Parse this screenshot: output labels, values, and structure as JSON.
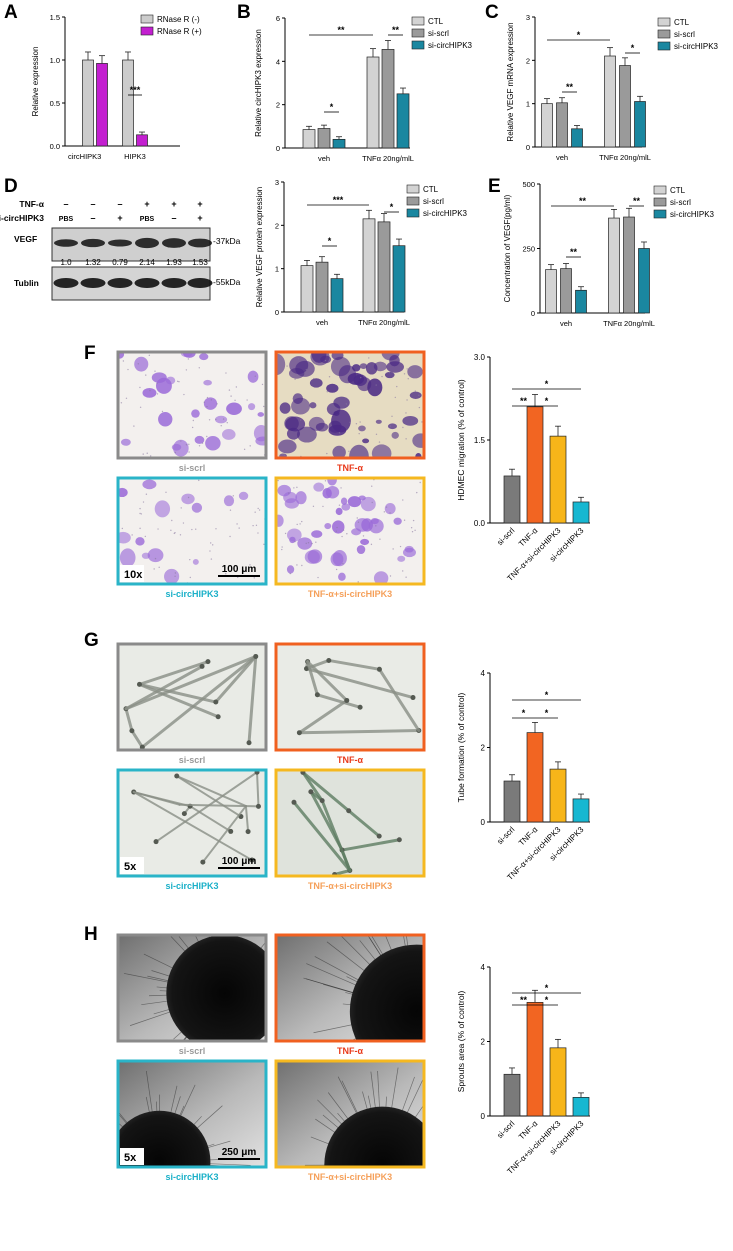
{
  "panel_labels": {
    "A": "A",
    "B": "B",
    "C": "C",
    "D": "D",
    "E": "E",
    "F": "F",
    "G": "G",
    "H": "H"
  },
  "panelA": {
    "ylabel": "Relative expression",
    "legend": [
      "RNase R (-)",
      "RNase R (+)"
    ],
    "colors": [
      "#cccccc",
      "#c31fd0"
    ],
    "sig": [
      "***"
    ],
    "chart_data": {
      "type": "bar",
      "categories": [
        "circHIPK3",
        "HIPK3"
      ],
      "series": [
        {
          "name": "RNase R (-)",
          "values": [
            1.0,
            1.0
          ]
        },
        {
          "name": "RNase R (+)",
          "values": [
            0.96,
            0.13
          ]
        }
      ],
      "ylim": [
        0,
        1.5
      ],
      "yticks": [
        "0.0",
        "0.5",
        "1.0",
        "1.5"
      ]
    }
  },
  "panelB": {
    "ylabel": "Relative circHIPK3 expression",
    "legend": [
      "CTL",
      "si-scrl",
      "si-circHIPK3"
    ],
    "sig": [
      "**",
      "*",
      "**"
    ],
    "chart_data": {
      "type": "bar",
      "categories": [
        "veh",
        "TNFα 20ng/mlL"
      ],
      "series": [
        {
          "name": "CTL",
          "values": [
            0.85,
            4.2
          ]
        },
        {
          "name": "si-scrl",
          "values": [
            0.9,
            4.55
          ]
        },
        {
          "name": "si-circHIPK3",
          "values": [
            0.4,
            2.5
          ]
        }
      ],
      "ylim": [
        0,
        6
      ],
      "yticks": [
        "0",
        "2",
        "4",
        "6"
      ]
    }
  },
  "panelC": {
    "ylabel": "Relative VEGF mRNA expression",
    "legend": [
      "CTL",
      "si-scrl",
      "si-circHIPK3"
    ],
    "sig": [
      "*",
      "**",
      "*"
    ],
    "chart_data": {
      "type": "bar",
      "categories": [
        "veh",
        "TNFα 20ng/mlL"
      ],
      "series": [
        {
          "name": "CTL",
          "values": [
            1.0,
            2.1
          ]
        },
        {
          "name": "si-scrl",
          "values": [
            1.02,
            1.88
          ]
        },
        {
          "name": "si-circHIPK3",
          "values": [
            0.42,
            1.05
          ]
        }
      ],
      "ylim": [
        0,
        3
      ],
      "yticks": [
        "0",
        "1",
        "2",
        "3"
      ]
    }
  },
  "panelD_blot": {
    "row_labels": [
      "TNF-α",
      "si-circHIPK3"
    ],
    "tnf_signs": [
      "–",
      "–",
      "–",
      "+",
      "+",
      "+"
    ],
    "si_signs": [
      "PBS",
      "–",
      "+",
      "PBS",
      "–",
      "+"
    ],
    "band_labels": [
      "VEGF",
      "Tublin"
    ],
    "kda": [
      "-37kDa",
      "-55kDa"
    ],
    "quant": [
      "1.0",
      "1.32",
      "0.79",
      "2.14",
      "1.93",
      "1.53"
    ]
  },
  "panelD_chart": {
    "ylabel": "Relative VEGF protein expression",
    "legend": [
      "CTL",
      "si-scrl",
      "si-circHIPK3"
    ],
    "sig": [
      "***",
      "*",
      "*"
    ],
    "chart_data": {
      "type": "bar",
      "categories": [
        "veh",
        "TNFα 20ng/mlL"
      ],
      "series": [
        {
          "name": "CTL",
          "values": [
            1.07,
            2.15
          ]
        },
        {
          "name": "si-scrl",
          "values": [
            1.15,
            2.08
          ]
        },
        {
          "name": "si-circHIPK3",
          "values": [
            0.77,
            1.53
          ]
        }
      ],
      "ylim": [
        0,
        3
      ],
      "yticks": [
        "0",
        "1",
        "2",
        "3"
      ]
    }
  },
  "panelE": {
    "ylabel": "Concentration of VEGF(pg/ml)",
    "legend": [
      "CTL",
      "si-scrl",
      "si-circHIPK3"
    ],
    "sig": [
      "**",
      "**",
      "**"
    ],
    "chart_data": {
      "type": "bar",
      "categories": [
        "veh",
        "TNFα 20ng/mlL"
      ],
      "series": [
        {
          "name": "CTL",
          "values": [
            168,
            368
          ]
        },
        {
          "name": "si-scrl",
          "values": [
            172,
            372
          ]
        },
        {
          "name": "si-circHIPK3",
          "values": [
            88,
            250
          ]
        }
      ],
      "ylim": [
        0,
        500
      ],
      "yticks": [
        "0",
        "250",
        "500"
      ]
    }
  },
  "image_panels": {
    "labels": [
      "si-scrl",
      "TNF-α",
      "si-circHIPK3",
      "TNF-α+si-circHIPK3"
    ],
    "label_colors": [
      "#9a9a9a",
      "#e8391a",
      "#1ab0c8",
      "#f5a05a"
    ],
    "border_colors": [
      "#8a8a8a",
      "#f06020",
      "#2ab4c8",
      "#f5b820"
    ],
    "F": {
      "mag": "10x",
      "scale": "100 μm"
    },
    "G": {
      "mag": "5x",
      "scale": "100 μm"
    },
    "H": {
      "mag": "5x",
      "scale": "250 μm"
    }
  },
  "panelF_chart": {
    "ylabel": "HDMEC migration (% of control)",
    "sig": [
      "**",
      "*",
      "*"
    ],
    "colors": [
      "#7a7a7a",
      "#f26522",
      "#f7b519",
      "#17b7d1"
    ],
    "chart_data": {
      "type": "bar",
      "categories": [
        "si-scrl",
        "TNF-α",
        "TNF-α+si-circHIPK3",
        "si-circHIPK3"
      ],
      "values": [
        0.85,
        2.1,
        1.57,
        0.38
      ],
      "ylim": [
        0,
        3
      ],
      "yticks": [
        "0.0",
        "1.5",
        "3.0"
      ]
    }
  },
  "panelG_chart": {
    "ylabel": "Tube formation (% of control)",
    "sig": [
      "*",
      "*",
      "*"
    ],
    "colors": [
      "#7a7a7a",
      "#f26522",
      "#f7b519",
      "#17b7d1"
    ],
    "chart_data": {
      "type": "bar",
      "categories": [
        "si-scrl",
        "TNF-α",
        "TNF-α+si-circHIPK3",
        "si-circHIPK3"
      ],
      "values": [
        1.1,
        2.4,
        1.42,
        0.62
      ],
      "ylim": [
        0,
        4
      ],
      "yticks": [
        "0",
        "2",
        "4"
      ]
    }
  },
  "panelH_chart": {
    "ylabel": "Sprouts area (% of control)",
    "sig": [
      "**",
      "*",
      "*"
    ],
    "colors": [
      "#7a7a7a",
      "#f26522",
      "#f7b519",
      "#17b7d1"
    ],
    "chart_data": {
      "type": "bar",
      "categories": [
        "si-scrl",
        "TNF-α",
        "TNF-α+si-circHIPK3",
        "si-circHIPK3"
      ],
      "values": [
        1.12,
        3.05,
        1.83,
        0.5
      ],
      "ylim": [
        0,
        4
      ],
      "yticks": [
        "0",
        "2",
        "4"
      ]
    }
  }
}
